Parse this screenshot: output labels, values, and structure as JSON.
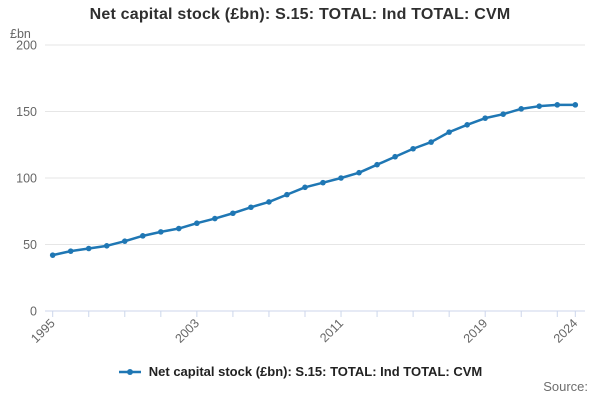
{
  "title": "Net capital stock (£bn): S.15: TOTAL: Ind TOTAL: CVM",
  "legend": {
    "label": "Net capital stock (£bn): S.15: TOTAL: Ind TOTAL: CVM"
  },
  "source_label": "Source:",
  "y_axis": {
    "unit": "£bn",
    "ticks": [
      0,
      50,
      100,
      150,
      200
    ]
  },
  "x_axis": {
    "tick_years": [
      1995,
      1997,
      1999,
      2001,
      2003,
      2005,
      2007,
      2009,
      2011,
      2013,
      2015,
      2017,
      2019,
      2021,
      2023,
      2024
    ],
    "label_years": [
      1995,
      2003,
      2011,
      2019,
      2024
    ]
  },
  "colors": {
    "line": "#1f77b4",
    "grid": "#e6e6e6",
    "axis": "#ccd6eb",
    "text_muted": "#666666",
    "title_text": "#2f2f2f",
    "legend_text": "#222222"
  },
  "chart_data": {
    "type": "line",
    "title": "Net capital stock (£bn): S.15: TOTAL: Ind TOTAL: CVM",
    "xlabel": "",
    "ylabel": "£bn",
    "ylim": [
      0,
      200
    ],
    "grid": true,
    "legend_position": "bottom",
    "series_name": "Net capital stock (£bn): S.15: TOTAL: Ind TOTAL: CVM",
    "x": [
      1995,
      1996,
      1997,
      1998,
      1999,
      2000,
      2001,
      2002,
      2003,
      2004,
      2005,
      2006,
      2007,
      2008,
      2009,
      2010,
      2011,
      2012,
      2013,
      2014,
      2015,
      2016,
      2017,
      2018,
      2019,
      2020,
      2021,
      2022,
      2023,
      2024
    ],
    "values": [
      42,
      45,
      47,
      49,
      52.5,
      56.5,
      59.5,
      62,
      66,
      69.5,
      73.5,
      78,
      82,
      87.5,
      93,
      96.5,
      100,
      104,
      110,
      116,
      122,
      127,
      134.5,
      140,
      145,
      148,
      152,
      154,
      155,
      155
    ]
  }
}
